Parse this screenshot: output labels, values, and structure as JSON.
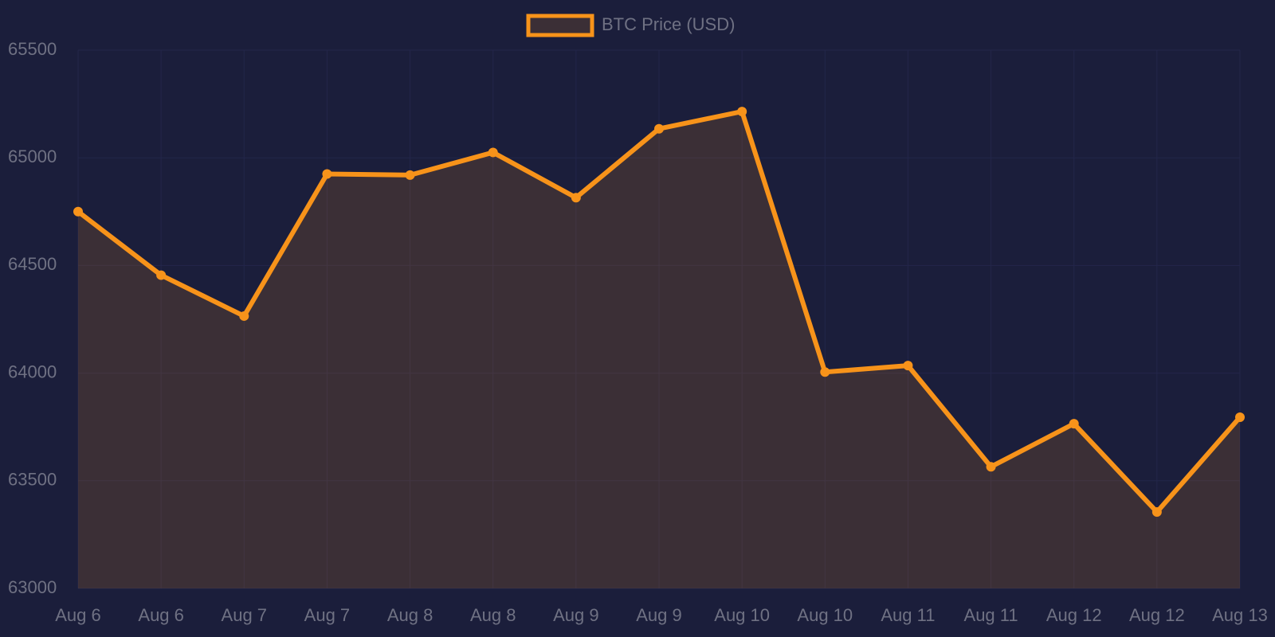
{
  "chart_data": {
    "type": "line",
    "categories": [
      "Aug 6",
      "Aug 6",
      "Aug 7",
      "Aug 7",
      "Aug 8",
      "Aug 8",
      "Aug 9",
      "Aug 9",
      "Aug 10",
      "Aug 10",
      "Aug 11",
      "Aug 11",
      "Aug 12",
      "Aug 12",
      "Aug 13"
    ],
    "series": [
      {
        "name": "BTC Price (USD)",
        "color": "#f7931a",
        "values": [
          64750,
          64455,
          64265,
          64925,
          64920,
          65025,
          64815,
          65135,
          65215,
          64005,
          64035,
          63565,
          63765,
          63355,
          63795
        ]
      }
    ],
    "ylim": [
      63000,
      65500
    ],
    "yticks": [
      63000,
      63500,
      64000,
      64500,
      65000,
      65500
    ],
    "grid": true,
    "fill": true,
    "legend": "top"
  }
}
